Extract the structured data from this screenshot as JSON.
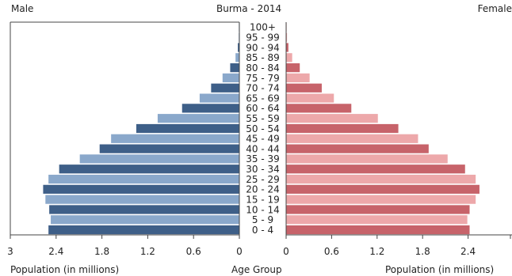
{
  "header": {
    "left_label": "Male",
    "title": "Burma - 2014",
    "right_label": "Female"
  },
  "footer": {
    "left_axis_label": "Population (in millions)",
    "center_label": "Age Group",
    "right_axis_label": "Population (in millions)"
  },
  "colors": {
    "male_dark": "#3e5f88",
    "male_light": "#8aa8cb",
    "female_dark": "#c7636a",
    "female_light": "#eda8aa",
    "axis": "#444444"
  },
  "chart_data": {
    "type": "bar",
    "orientation": "horizontal-pyramid",
    "title": "Burma - 2014",
    "categories": [
      "100+",
      "95 - 99",
      "90 - 94",
      "85 - 89",
      "80 - 84",
      "75 - 79",
      "70 - 74",
      "65 - 69",
      "60 - 64",
      "55 - 59",
      "50 - 54",
      "45 - 49",
      "40 - 44",
      "35 - 39",
      "30 - 34",
      "25 - 29",
      "20 - 24",
      "15 - 19",
      "10 - 14",
      "5 - 9",
      "0 - 4"
    ],
    "series": [
      {
        "name": "Male",
        "values": [
          0.003,
          0.008,
          0.02,
          0.05,
          0.12,
          0.22,
          0.37,
          0.52,
          0.75,
          1.07,
          1.35,
          1.68,
          1.83,
          2.09,
          2.36,
          2.5,
          2.57,
          2.54,
          2.49,
          2.47,
          2.5
        ]
      },
      {
        "name": "Female",
        "values": [
          0.004,
          0.012,
          0.03,
          0.08,
          0.18,
          0.31,
          0.47,
          0.63,
          0.86,
          1.21,
          1.48,
          1.74,
          1.88,
          2.13,
          2.36,
          2.5,
          2.55,
          2.5,
          2.42,
          2.39,
          2.42
        ]
      }
    ],
    "xticks": [
      "3",
      "2.4",
      "1.8",
      "1.2",
      "0.6",
      "0",
      "0",
      "0.6",
      "1.2",
      "1.8",
      "2.4"
    ],
    "xlim": [
      0,
      3
    ],
    "xlabel": "Population (in millions)",
    "ylabel": "Age Group",
    "grid": false,
    "legend": "none"
  }
}
